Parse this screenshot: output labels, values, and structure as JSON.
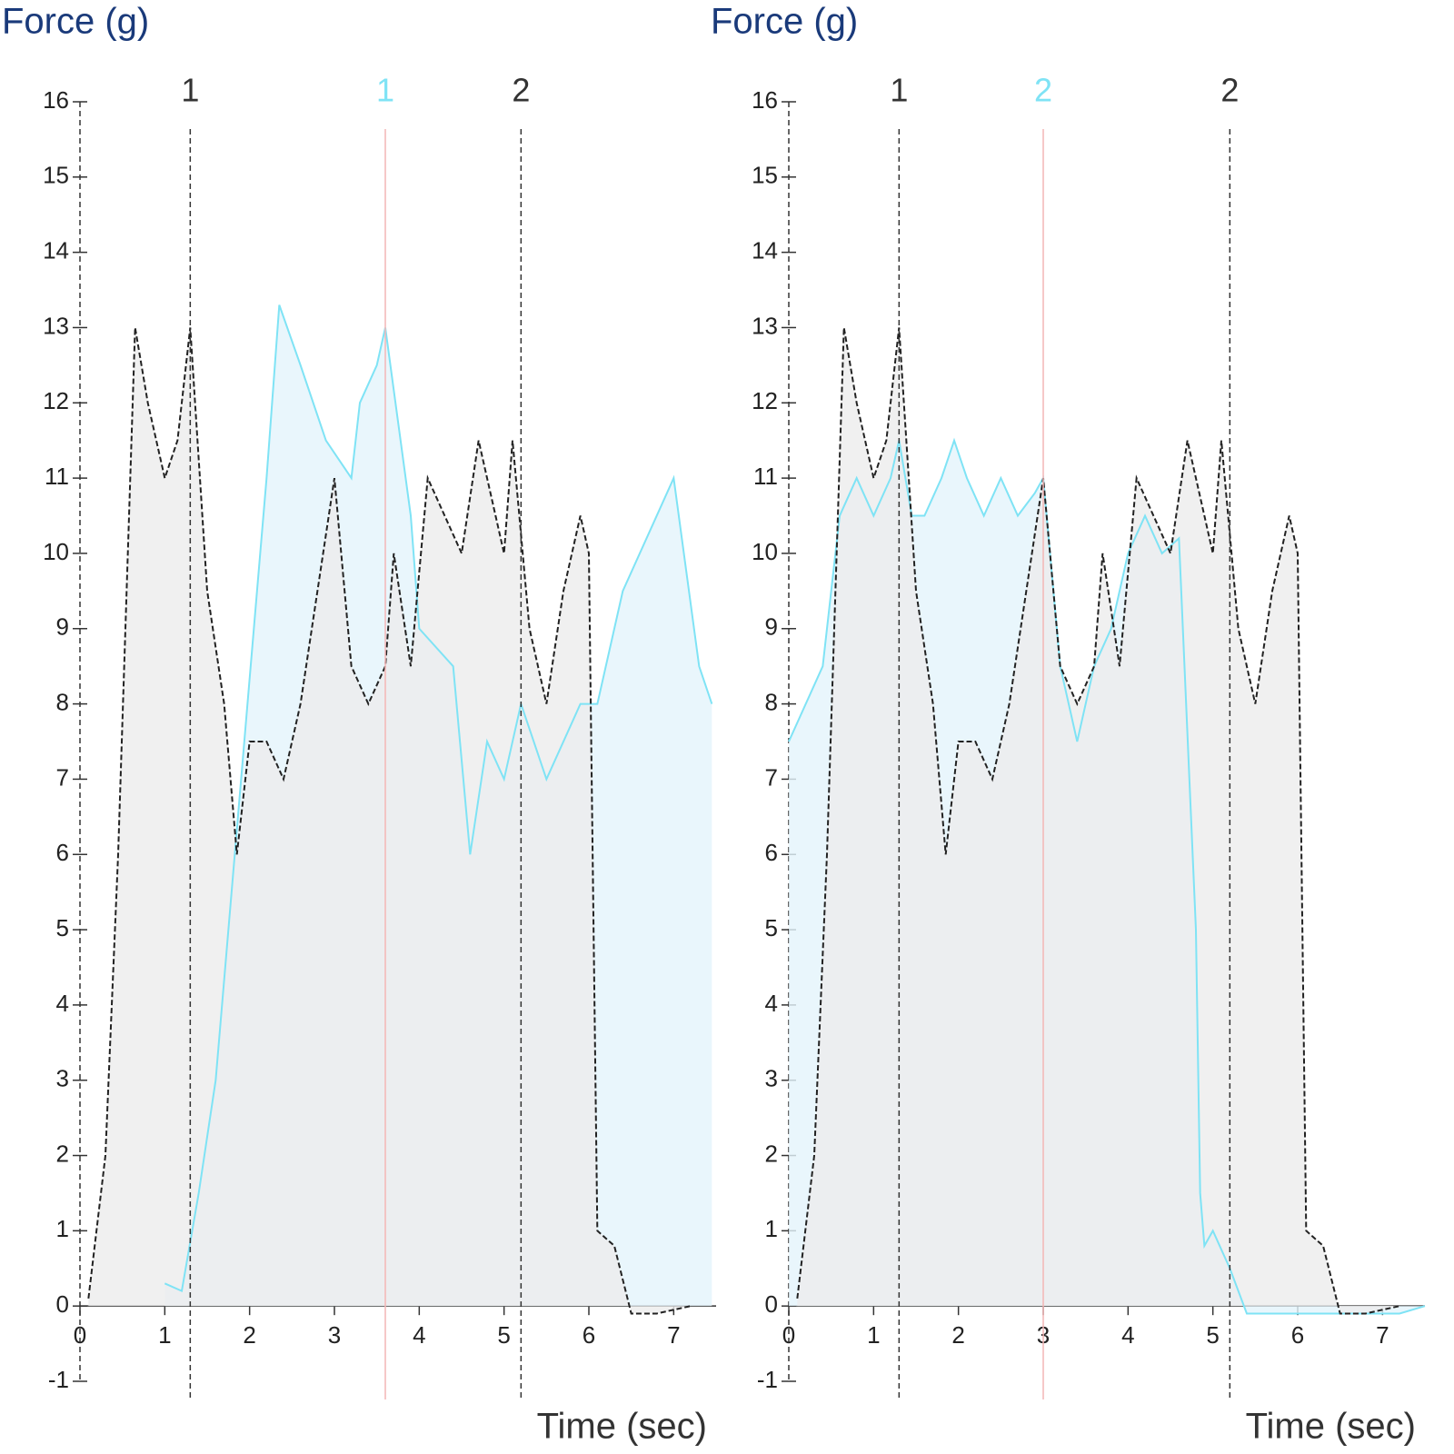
{
  "chart_data": [
    {
      "type": "line",
      "title": "Force (g)",
      "xlabel": "Time (sec)",
      "xlim": [
        0,
        7.5
      ],
      "ylim": [
        -1,
        16
      ],
      "xticks": [
        0,
        1,
        2,
        3,
        4,
        5,
        6,
        7
      ],
      "yticks": [
        -1,
        0,
        1,
        2,
        3,
        4,
        5,
        6,
        7,
        8,
        9,
        10,
        11,
        12,
        13,
        14,
        15,
        16
      ],
      "markers": [
        {
          "x": 1.3,
          "label": "1",
          "color": "#333333"
        },
        {
          "x": 3.6,
          "label": "1",
          "color": "#7fe3f5"
        },
        {
          "x": 5.2,
          "label": "2",
          "color": "#333333"
        }
      ],
      "series": [
        {
          "color": "#7fe3f5",
          "fill": "#e3f4fb",
          "dash": false,
          "x": [
            1.0,
            1.2,
            1.4,
            1.6,
            1.9,
            2.2,
            2.35,
            2.6,
            2.9,
            3.2,
            3.3,
            3.5,
            3.6,
            3.9,
            4.0,
            4.4,
            4.6,
            4.8,
            5.0,
            5.2,
            5.5,
            5.9,
            6.1,
            6.4,
            6.8,
            7.0,
            7.3,
            7.45
          ],
          "values": [
            0.3,
            0.2,
            1.5,
            3,
            7,
            11,
            13.3,
            12.5,
            11.5,
            11,
            12,
            12.5,
            13,
            10.5,
            9,
            8.5,
            6,
            7.5,
            7,
            8,
            7,
            8,
            8,
            9.5,
            10.5,
            11,
            8.5,
            8
          ]
        },
        {
          "color": "#222222",
          "fill": "#ececec",
          "dash": true,
          "x": [
            0.1,
            0.3,
            0.45,
            0.65,
            0.8,
            1.0,
            1.15,
            1.3,
            1.5,
            1.7,
            1.85,
            2.0,
            2.2,
            2.4,
            2.6,
            2.8,
            3.0,
            3.2,
            3.4,
            3.6,
            3.7,
            3.9,
            4.1,
            4.3,
            4.5,
            4.7,
            4.9,
            5.0,
            5.1,
            5.3,
            5.5,
            5.7,
            5.9,
            6.0,
            6.1,
            6.3,
            6.5,
            6.8,
            7.2
          ],
          "values": [
            0.1,
            2,
            6,
            13,
            12,
            11,
            11.5,
            13,
            9.5,
            8,
            6,
            7.5,
            7.5,
            7,
            8,
            9.5,
            11,
            8.5,
            8,
            8.5,
            10,
            8.5,
            11,
            10.5,
            10,
            11.5,
            10.5,
            10,
            11.5,
            9,
            8,
            9.5,
            10.5,
            10,
            1,
            0.8,
            -0.1,
            -0.1,
            0
          ]
        }
      ]
    },
    {
      "type": "line",
      "title": "Force (g)",
      "xlabel": "Time (sec)",
      "xlim": [
        0,
        7.5
      ],
      "ylim": [
        -1,
        16
      ],
      "xticks": [
        0,
        1,
        2,
        3,
        4,
        5,
        6,
        7
      ],
      "yticks": [
        -1,
        0,
        1,
        2,
        3,
        4,
        5,
        6,
        7,
        8,
        9,
        10,
        11,
        12,
        13,
        14,
        15,
        16
      ],
      "markers": [
        {
          "x": 1.3,
          "label": "1",
          "color": "#333333"
        },
        {
          "x": 3.0,
          "label": "2",
          "color": "#7fe3f5"
        },
        {
          "x": 5.2,
          "label": "2",
          "color": "#333333"
        }
      ],
      "series": [
        {
          "color": "#7fe3f5",
          "fill": "#e3f4fb",
          "dash": false,
          "x": [
            0.0,
            0.4,
            0.6,
            0.8,
            1.0,
            1.2,
            1.3,
            1.45,
            1.6,
            1.8,
            1.95,
            2.1,
            2.3,
            2.5,
            2.7,
            2.9,
            3.0,
            3.2,
            3.4,
            3.6,
            3.8,
            4.0,
            4.2,
            4.4,
            4.6,
            4.8,
            4.85,
            4.9,
            5.0,
            5.2,
            5.4,
            5.5,
            6.5,
            7.2,
            7.5
          ],
          "values": [
            7.5,
            8.5,
            10.5,
            11,
            10.5,
            11,
            11.5,
            10.5,
            10.5,
            11,
            11.5,
            11,
            10.5,
            11,
            10.5,
            10.8,
            11,
            8.5,
            7.5,
            8.5,
            9,
            10,
            10.5,
            10,
            10.2,
            5,
            1.5,
            0.8,
            1,
            0.5,
            -0.1,
            -0.1,
            -0.1,
            -0.1,
            0
          ]
        },
        {
          "color": "#222222",
          "fill": "#ececec",
          "dash": true,
          "x": [
            0.1,
            0.3,
            0.45,
            0.65,
            0.8,
            1.0,
            1.15,
            1.3,
            1.5,
            1.7,
            1.85,
            2.0,
            2.2,
            2.4,
            2.6,
            2.8,
            3.0,
            3.2,
            3.4,
            3.6,
            3.7,
            3.9,
            4.1,
            4.3,
            4.5,
            4.7,
            4.9,
            5.0,
            5.1,
            5.3,
            5.5,
            5.7,
            5.9,
            6.0,
            6.1,
            6.3,
            6.5,
            6.8,
            7.2
          ],
          "values": [
            0.1,
            2,
            6,
            13,
            12,
            11,
            11.5,
            13,
            9.5,
            8,
            6,
            7.5,
            7.5,
            7,
            8,
            9.5,
            11,
            8.5,
            8,
            8.5,
            10,
            8.5,
            11,
            10.5,
            10,
            11.5,
            10.5,
            10,
            11.5,
            9,
            8,
            9.5,
            10.5,
            10,
            1,
            0.8,
            -0.1,
            -0.1,
            0
          ]
        }
      ]
    }
  ]
}
